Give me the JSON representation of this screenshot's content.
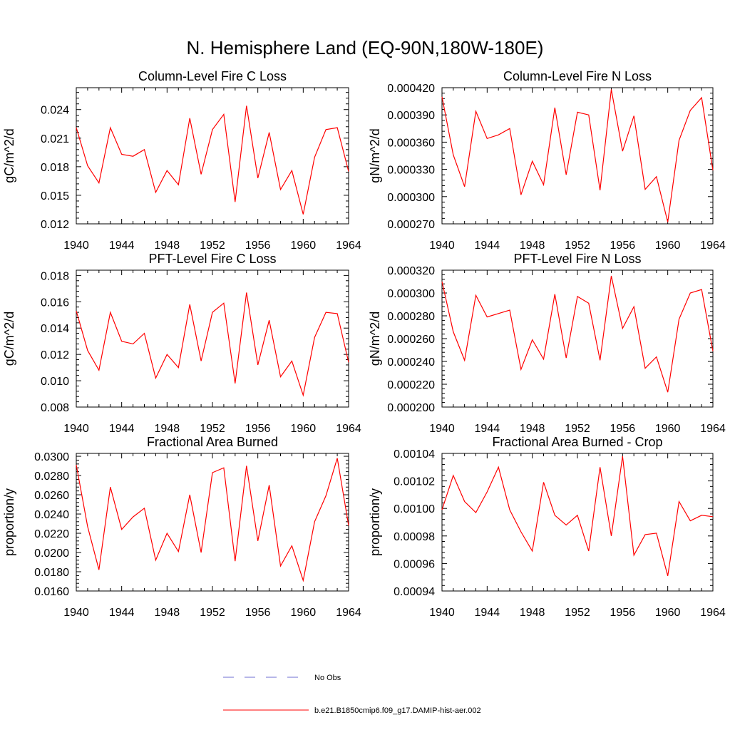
{
  "figure_title": "N. Hemisphere Land (EQ-90N,180W-180E)",
  "legend": [
    {
      "label": "No Obs",
      "color": "#6e6ed2",
      "dash": true
    },
    {
      "label": "b.e21.B1850cmip6.f09_g17.DAMIP-hist-aer.002",
      "color": "#ff0000",
      "dash": false
    }
  ],
  "series_color": "#ff0000",
  "chart_data": [
    {
      "type": "line",
      "title": "Column-Level Fire C Loss",
      "ylabel": "gC/m^2/d",
      "x": [
        1940,
        1941,
        1942,
        1943,
        1944,
        1945,
        1946,
        1947,
        1948,
        1949,
        1950,
        1951,
        1952,
        1953,
        1954,
        1955,
        1956,
        1957,
        1958,
        1959,
        1960,
        1961,
        1962,
        1963,
        1964
      ],
      "series": [
        {
          "values": [
            0.0221,
            0.0181,
            0.0163,
            0.0221,
            0.0193,
            0.0191,
            0.0198,
            0.0153,
            0.0176,
            0.0161,
            0.0231,
            0.0172,
            0.0219,
            0.0235,
            0.0143,
            0.0244,
            0.0168,
            0.0216,
            0.0156,
            0.0176,
            0.013,
            0.019,
            0.0219,
            0.0221,
            0.0175
          ]
        }
      ],
      "xlim": [
        1940,
        1964
      ],
      "ylim": [
        0.012,
        0.0263
      ],
      "xticks": [
        "1940",
        "1944",
        "1948",
        "1952",
        "1956",
        "1960",
        "1964"
      ],
      "yticks": [
        "0.012",
        "0.015",
        "0.018",
        "0.021",
        "0.024"
      ]
    },
    {
      "type": "line",
      "title": "Column-Level Fire N Loss",
      "ylabel": "gN/m^2/d",
      "x": [
        1940,
        1941,
        1942,
        1943,
        1944,
        1945,
        1946,
        1947,
        1948,
        1949,
        1950,
        1951,
        1952,
        1953,
        1954,
        1955,
        1956,
        1957,
        1958,
        1959,
        1960,
        1961,
        1962,
        1963,
        1964
      ],
      "series": [
        {
          "values": [
            0.00041,
            0.000346,
            0.000311,
            0.000394,
            0.000364,
            0.000368,
            0.000375,
            0.000302,
            0.000339,
            0.000313,
            0.000398,
            0.000324,
            0.000393,
            0.00039,
            0.000307,
            0.000418,
            0.00035,
            0.000389,
            0.000308,
            0.000322,
            0.000272,
            0.000362,
            0.000395,
            0.000409,
            0.000329
          ]
        }
      ],
      "xlim": [
        1940,
        1964
      ],
      "ylim": [
        0.00027,
        0.00042
      ],
      "xticks": [
        "1940",
        "1944",
        "1948",
        "1952",
        "1956",
        "1960",
        "1964"
      ],
      "yticks": [
        "0.000270",
        "0.000300",
        "0.000330",
        "0.000360",
        "0.000390",
        "0.000420"
      ]
    },
    {
      "type": "line",
      "title": "PFT-Level Fire C Loss",
      "ylabel": "gC/m^2/d",
      "x": [
        1940,
        1941,
        1942,
        1943,
        1944,
        1945,
        1946,
        1947,
        1948,
        1949,
        1950,
        1951,
        1952,
        1953,
        1954,
        1955,
        1956,
        1957,
        1958,
        1959,
        1960,
        1961,
        1962,
        1963,
        1964
      ],
      "series": [
        {
          "values": [
            0.0153,
            0.0123,
            0.0108,
            0.0152,
            0.013,
            0.0128,
            0.0136,
            0.0102,
            0.012,
            0.011,
            0.0158,
            0.0115,
            0.0152,
            0.0159,
            0.0098,
            0.0167,
            0.0112,
            0.0146,
            0.0103,
            0.0115,
            0.0089,
            0.0133,
            0.0152,
            0.0151,
            0.0114
          ]
        }
      ],
      "xlim": [
        1940,
        1964
      ],
      "ylim": [
        0.008,
        0.0184
      ],
      "xticks": [
        "1940",
        "1944",
        "1948",
        "1952",
        "1956",
        "1960",
        "1964"
      ],
      "yticks": [
        "0.008",
        "0.010",
        "0.012",
        "0.014",
        "0.016",
        "0.018"
      ]
    },
    {
      "type": "line",
      "title": "PFT-Level Fire N Loss",
      "ylabel": "gN/m^2/d",
      "x": [
        1940,
        1941,
        1942,
        1943,
        1944,
        1945,
        1946,
        1947,
        1948,
        1949,
        1950,
        1951,
        1952,
        1953,
        1954,
        1955,
        1956,
        1957,
        1958,
        1959,
        1960,
        1961,
        1962,
        1963,
        1964
      ],
      "series": [
        {
          "values": [
            0.00031,
            0.000266,
            0.000241,
            0.000298,
            0.000279,
            0.000282,
            0.000285,
            0.000233,
            0.000259,
            0.000242,
            0.000299,
            0.000243,
            0.000297,
            0.000291,
            0.000241,
            0.000315,
            0.000269,
            0.000288,
            0.000234,
            0.000244,
            0.000213,
            0.000277,
            0.0003,
            0.000303,
            0.000249
          ]
        }
      ],
      "xlim": [
        1940,
        1964
      ],
      "ylim": [
        0.0002,
        0.00032
      ],
      "xticks": [
        "1940",
        "1944",
        "1948",
        "1952",
        "1956",
        "1960",
        "1964"
      ],
      "yticks": [
        "0.000200",
        "0.000220",
        "0.000240",
        "0.000260",
        "0.000280",
        "0.000300",
        "0.000320"
      ]
    },
    {
      "type": "line",
      "title": "Fractional Area Burned",
      "ylabel": "proportion/y",
      "x": [
        1940,
        1941,
        1942,
        1943,
        1944,
        1945,
        1946,
        1947,
        1948,
        1949,
        1950,
        1951,
        1952,
        1953,
        1954,
        1955,
        1956,
        1957,
        1958,
        1959,
        1960,
        1961,
        1962,
        1963,
        1964
      ],
      "series": [
        {
          "values": [
            0.0291,
            0.0227,
            0.0182,
            0.0268,
            0.0224,
            0.0237,
            0.0246,
            0.0192,
            0.022,
            0.0201,
            0.026,
            0.02,
            0.0283,
            0.0288,
            0.0191,
            0.029,
            0.0212,
            0.027,
            0.0186,
            0.0207,
            0.0171,
            0.0232,
            0.0259,
            0.0298,
            0.0228
          ]
        }
      ],
      "xlim": [
        1940,
        1964
      ],
      "ylim": [
        0.016,
        0.0303
      ],
      "xticks": [
        "1940",
        "1944",
        "1948",
        "1952",
        "1956",
        "1960",
        "1964"
      ],
      "yticks": [
        "0.0160",
        "0.0180",
        "0.0200",
        "0.0220",
        "0.0240",
        "0.0260",
        "0.0280",
        "0.0300"
      ]
    },
    {
      "type": "line",
      "title": "Fractional Area Burned - Crop",
      "ylabel": "proportion/y",
      "x": [
        1940,
        1941,
        1942,
        1943,
        1944,
        1945,
        1946,
        1947,
        1948,
        1949,
        1950,
        1951,
        1952,
        1953,
        1954,
        1955,
        1956,
        1957,
        1958,
        1959,
        1960,
        1961,
        1962,
        1963,
        1964
      ],
      "series": [
        {
          "values": [
            0.000999,
            0.001024,
            0.001005,
            0.000997,
            0.001012,
            0.00103,
            0.000999,
            0.000983,
            0.000969,
            0.001019,
            0.000995,
            0.000988,
            0.000995,
            0.000969,
            0.00103,
            0.00098,
            0.001038,
            0.000966,
            0.000981,
            0.000982,
            0.000951,
            0.001005,
            0.000991,
            0.000995,
            0.000994
          ]
        }
      ],
      "xlim": [
        1940,
        1964
      ],
      "ylim": [
        0.00094,
        0.00104
      ],
      "xticks": [
        "1940",
        "1944",
        "1948",
        "1952",
        "1956",
        "1960",
        "1964"
      ],
      "yticks": [
        "0.00094",
        "0.00096",
        "0.00098",
        "0.00100",
        "0.00102",
        "0.00104"
      ]
    }
  ]
}
